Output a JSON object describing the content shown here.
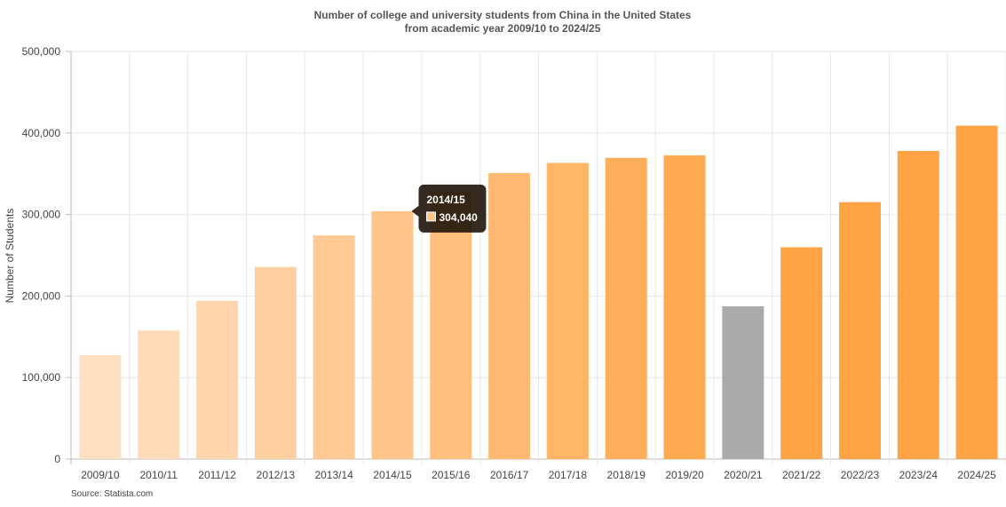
{
  "chart_data": {
    "type": "bar",
    "title": "Number of college and university students from China in the United States",
    "subtitle": "from academic year 2009/10 to 2024/25",
    "xlabel": "",
    "ylabel": "Number of Students",
    "ylim": [
      0,
      500000
    ],
    "yticks": [
      "0",
      "100,000",
      "200,000",
      "300,000",
      "400,000",
      "500,000"
    ],
    "grid": true,
    "categories": [
      "2009/10",
      "2010/11",
      "2011/12",
      "2012/13",
      "2013/14",
      "2014/15",
      "2015/16",
      "2016/17",
      "2017/18",
      "2018/19",
      "2019/20",
      "2020/21",
      "2021/22",
      "2022/23",
      "2023/24",
      "2024/25"
    ],
    "values": [
      127600,
      157600,
      194000,
      235600,
      274400,
      304040,
      328500,
      350800,
      363300,
      369500,
      372500,
      187400,
      259800,
      315200,
      378000,
      409000
    ],
    "colors": [
      "#ffe0c2",
      "#ffdab6",
      "#ffd5ab",
      "#ffcf9f",
      "#ffca94",
      "#ffc488",
      "#ffbf7d",
      "#ffb972",
      "#ffb466",
      "#ffae5b",
      "#ffa950",
      "#aaaaaa",
      "#ffa344",
      "#ffa344",
      "#ffa344",
      "#ffa344"
    ],
    "tooltip": {
      "category": "2014/15",
      "value_label": "304,040",
      "swatch_color": "#ffc488"
    },
    "source": "Source: Statista.com"
  }
}
